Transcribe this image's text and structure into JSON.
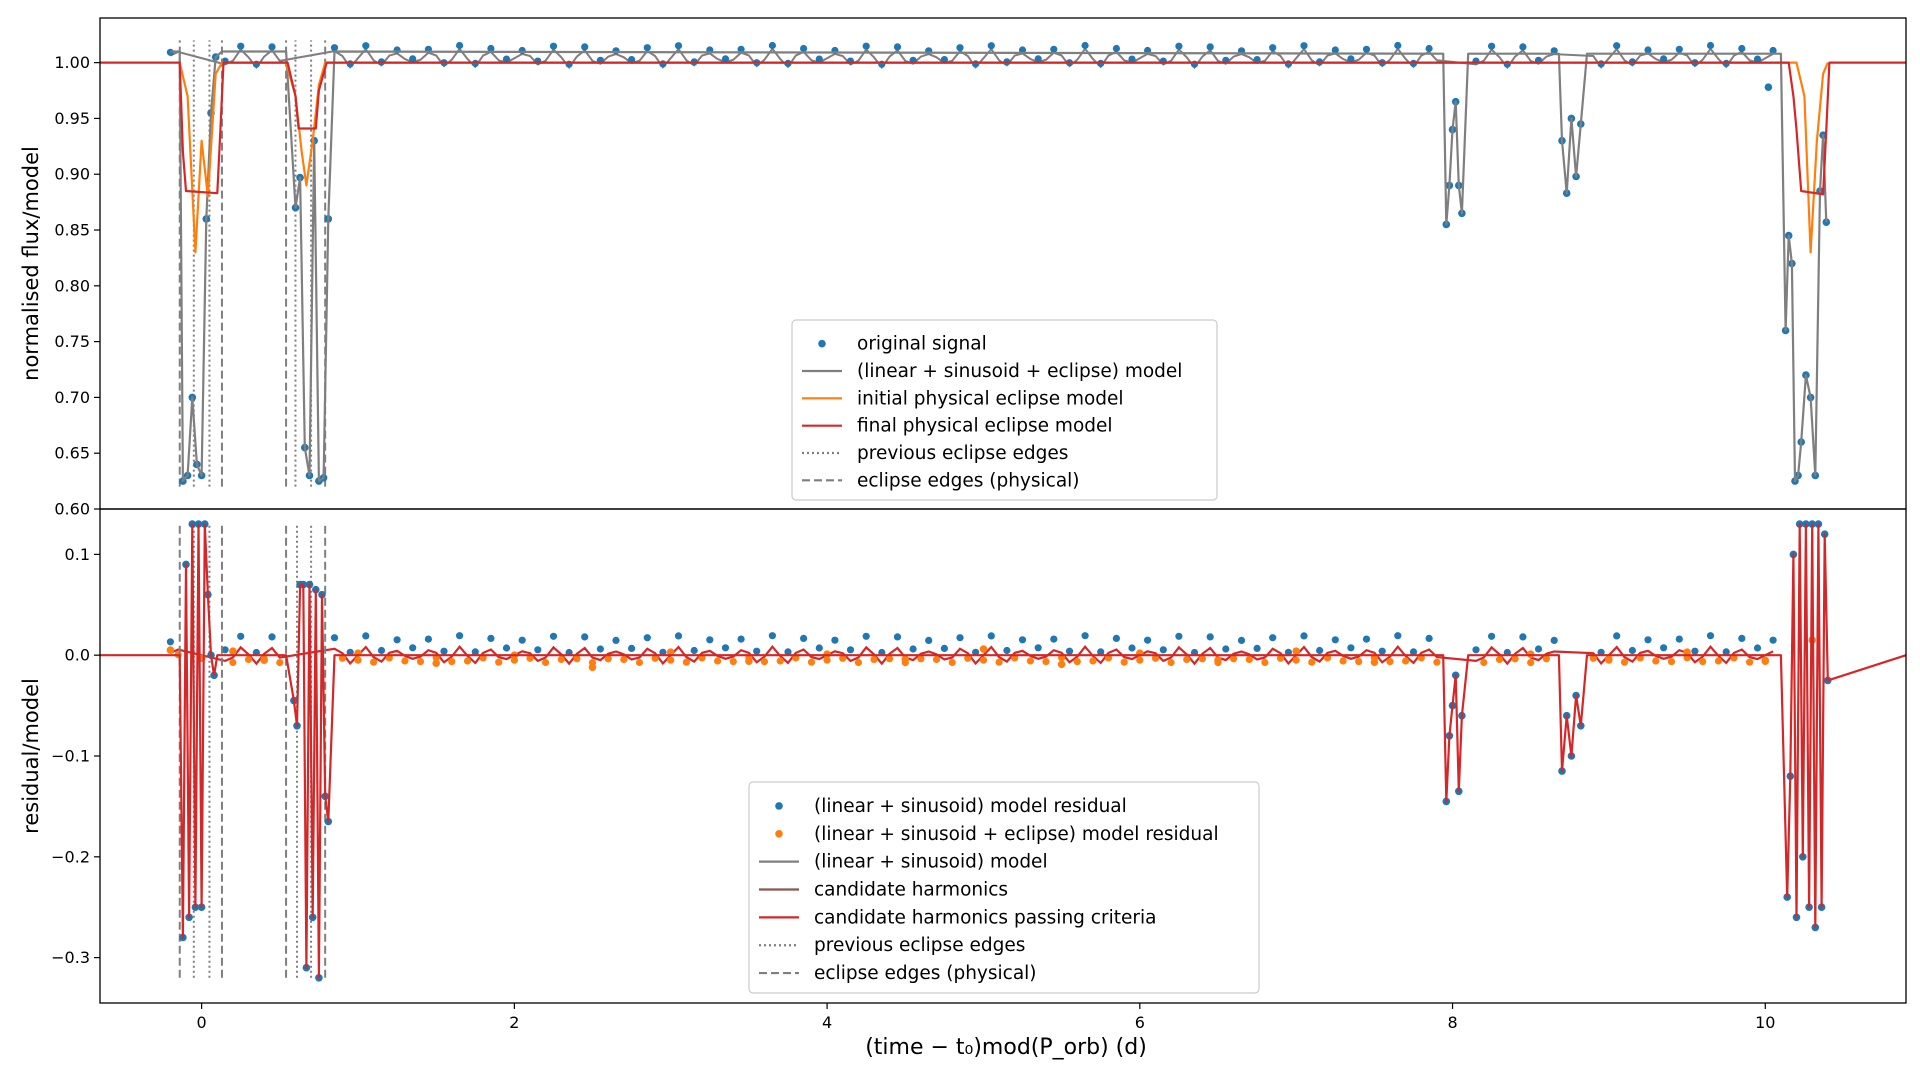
{
  "chart_data": {
    "type": "line",
    "xlabel": "(time − t₀)mod(P_orb) (d)",
    "xlim": [
      -0.65,
      10.9
    ],
    "x_ticks": [
      0,
      2,
      4,
      6,
      8,
      10
    ],
    "x_tick_labels": [
      "0",
      "2",
      "4",
      "6",
      "8",
      "10"
    ],
    "panels": [
      {
        "id": "top",
        "ylabel": "normalised flux/model",
        "ylim": [
          0.6,
          1.04
        ],
        "y_ticks": [
          0.6,
          0.65,
          0.7,
          0.75,
          0.8,
          0.85,
          0.9,
          0.95,
          1.0
        ],
        "y_tick_labels": [
          "0.60",
          "0.65",
          "0.70",
          "0.75",
          "0.80",
          "0.85",
          "0.90",
          "0.95",
          "1.00"
        ],
        "edges_dotted": [
          -0.05,
          0.05,
          0.6,
          0.7
        ],
        "edges_dashed": [
          -0.14,
          0.13,
          0.54,
          0.79
        ],
        "edge_range": [
          0.62,
          1.02
        ],
        "legend": {
          "placement": "lower center",
          "entries": [
            {
              "label": "original signal",
              "marker": "dot",
              "color": "#1f77b4"
            },
            {
              "label": "(linear + sinusoid + eclipse) model",
              "marker": "line",
              "color": "#7f7f7f"
            },
            {
              "label": "initial physical eclipse model",
              "marker": "line",
              "color": "#ff7f0e"
            },
            {
              "label": "final physical eclipse model",
              "marker": "line",
              "color": "#d62728"
            },
            {
              "label": "previous eclipse edges",
              "marker": "dotted",
              "color": "#7f7f7f"
            },
            {
              "label": "eclipse edges (physical)",
              "marker": "dashed",
              "color": "#7f7f7f"
            }
          ]
        },
        "series": [
          {
            "role": "original signal",
            "style": "scatter",
            "color": "#1f77b4",
            "x": [
              -0.12,
              -0.09,
              -0.06,
              -0.03,
              0.0,
              0.03,
              0.06,
              0.09,
              0.6,
              0.63,
              0.66,
              0.69,
              0.72,
              0.75,
              0.78,
              0.81,
              7.96,
              7.98,
              8.0,
              8.02,
              8.04,
              8.06,
              8.7,
              8.73,
              8.76,
              8.79,
              8.82,
              10.02,
              10.13,
              10.15,
              10.17,
              10.19,
              10.21,
              10.23,
              10.26,
              10.29,
              10.32,
              10.35,
              10.37,
              10.39
            ],
            "y": [
              0.625,
              0.63,
              0.7,
              0.64,
              0.63,
              0.86,
              0.955,
              1.005,
              0.87,
              0.897,
              0.655,
              0.63,
              0.93,
              0.625,
              0.628,
              0.86,
              0.855,
              0.89,
              0.94,
              0.965,
              0.89,
              0.865,
              0.93,
              0.883,
              0.95,
              0.898,
              0.945,
              0.978,
              0.76,
              0.845,
              0.82,
              0.625,
              0.63,
              0.66,
              0.72,
              0.7,
              0.63,
              0.885,
              0.935,
              0.857
            ]
          },
          {
            "role": "(linear + sinusoid + eclipse) model",
            "style": "line",
            "color": "#7f7f7f",
            "x": [
              -0.2,
              -0.14,
              -0.12,
              -0.09,
              -0.06,
              -0.03,
              0.0,
              0.03,
              0.06,
              0.09,
              0.13,
              0.54,
              0.6,
              0.63,
              0.66,
              0.69,
              0.72,
              0.75,
              0.78,
              0.81,
              0.85,
              7.94,
              7.96,
              7.98,
              8.0,
              8.02,
              8.04,
              8.06,
              8.1,
              8.68,
              8.7,
              8.73,
              8.76,
              8.79,
              8.82,
              8.86,
              10.1,
              10.13,
              10.15,
              10.17,
              10.19,
              10.21,
              10.23,
              10.26,
              10.29,
              10.32,
              10.35,
              10.37,
              10.39
            ],
            "y": [
              1.01,
              1.01,
              0.625,
              0.63,
              0.7,
              0.64,
              0.63,
              0.86,
              0.955,
              1.005,
              1.01,
              1.01,
              0.87,
              0.897,
              0.655,
              0.63,
              0.93,
              0.625,
              0.628,
              0.86,
              1.01,
              1.008,
              0.855,
              0.89,
              0.94,
              0.965,
              0.89,
              0.865,
              1.008,
              1.008,
              0.93,
              0.883,
              0.95,
              0.898,
              0.945,
              1.008,
              1.008,
              0.76,
              0.845,
              0.82,
              0.625,
              0.63,
              0.66,
              0.72,
              0.7,
              0.63,
              0.885,
              0.935,
              0.857
            ]
          },
          {
            "role": "initial physical eclipse model",
            "style": "line",
            "color": "#ff7f0e",
            "x": [
              -0.14,
              -0.09,
              -0.04,
              0.0,
              0.04,
              0.09,
              0.13,
              0.54,
              0.6,
              0.64,
              0.67,
              0.71,
              0.75,
              0.79,
              10.2,
              10.25,
              10.29,
              10.33,
              10.37,
              10.4
            ],
            "y": [
              1.0,
              0.97,
              0.83,
              0.93,
              0.88,
              0.99,
              1.0,
              1.0,
              0.97,
              0.92,
              0.89,
              0.93,
              0.98,
              1.0,
              1.0,
              0.97,
              0.83,
              0.93,
              0.99,
              1.0
            ]
          },
          {
            "role": "final physical eclipse model",
            "style": "line",
            "color": "#d62728",
            "x": [
              -0.65,
              -0.14,
              -0.12,
              -0.1,
              0.1,
              0.12,
              0.14,
              0.55,
              0.6,
              0.62,
              0.73,
              0.75,
              0.8,
              10.15,
              10.18,
              10.2,
              10.23,
              10.37,
              10.39,
              10.41,
              10.9
            ],
            "y": [
              1.0,
              1.0,
              0.92,
              0.885,
              0.883,
              0.94,
              1.0,
              1.0,
              0.97,
              0.941,
              0.941,
              0.975,
              1.0,
              1.0,
              0.97,
              0.94,
              0.885,
              0.882,
              0.94,
              1.0,
              1.0
            ]
          }
        ]
      },
      {
        "id": "bottom",
        "ylabel": "residual/model",
        "ylim": [
          -0.345,
          0.145
        ],
        "y_ticks": [
          -0.3,
          -0.2,
          -0.1,
          0.0,
          0.1
        ],
        "y_tick_labels": [
          "−0.3",
          "−0.2",
          "−0.1",
          "0.0",
          "0.1"
        ],
        "edges_dotted": [
          -0.05,
          0.05,
          0.61,
          0.7
        ],
        "edges_dashed": [
          -0.14,
          0.13,
          0.54,
          0.79
        ],
        "edge_range": [
          -0.32,
          0.13
        ],
        "legend": {
          "placement": "lower center",
          "entries": [
            {
              "label": "(linear + sinusoid) model residual",
              "marker": "dot",
              "color": "#1f77b4"
            },
            {
              "label": "(linear + sinusoid + eclipse) model residual",
              "marker": "dot",
              "color": "#ff7f0e"
            },
            {
              "label": "(linear + sinusoid) model",
              "marker": "line",
              "color": "#7f7f7f"
            },
            {
              "label": "candidate harmonics",
              "marker": "line",
              "color": "#8c564b"
            },
            {
              "label": "candidate harmonics passing criteria",
              "marker": "line",
              "color": "#d62728"
            },
            {
              "label": "previous eclipse edges",
              "marker": "dotted",
              "color": "#7f7f7f"
            },
            {
              "label": "eclipse edges (physical)",
              "marker": "dashed",
              "color": "#7f7f7f"
            }
          ]
        },
        "series": [
          {
            "role": "(linear + sinusoid) model residual",
            "style": "scatter",
            "color": "#1f77b4",
            "x": [
              -0.12,
              -0.1,
              -0.08,
              -0.06,
              -0.04,
              -0.02,
              0.0,
              0.02,
              0.04,
              0.06,
              0.08,
              0.59,
              0.61,
              0.63,
              0.65,
              0.67,
              0.69,
              0.71,
              0.73,
              0.75,
              0.77,
              0.79,
              0.81,
              7.96,
              7.98,
              8.0,
              8.02,
              8.04,
              8.06,
              8.7,
              8.73,
              8.76,
              8.79,
              8.82,
              10.14,
              10.16,
              10.18,
              10.2,
              10.22,
              10.24,
              10.26,
              10.28,
              10.3,
              10.32,
              10.34,
              10.36,
              10.38,
              10.4
            ],
            "y": [
              -0.28,
              0.09,
              -0.26,
              0.13,
              -0.25,
              0.13,
              -0.25,
              0.13,
              0.06,
              0.0,
              -0.02,
              -0.045,
              -0.07,
              0.07,
              0.07,
              -0.31,
              0.07,
              -0.26,
              0.065,
              -0.32,
              0.06,
              -0.14,
              -0.165,
              -0.145,
              -0.08,
              -0.05,
              -0.02,
              -0.135,
              -0.06,
              -0.115,
              -0.06,
              -0.1,
              -0.04,
              -0.07,
              -0.24,
              -0.12,
              0.1,
              -0.26,
              0.13,
              -0.2,
              0.13,
              -0.25,
              0.13,
              -0.27,
              0.13,
              -0.25,
              0.12,
              -0.025
            ]
          },
          {
            "role": "(linear + sinusoid + eclipse) model residual",
            "style": "scatter",
            "color": "#ff7f0e",
            "x": [
              -0.2,
              0.0,
              0.2,
              0.4,
              1.0,
              1.5,
              2.0,
              2.5,
              3.0,
              3.5,
              4.0,
              4.5,
              5.0,
              5.5,
              6.0,
              6.5,
              7.0,
              7.5,
              8.5,
              9.0,
              9.5,
              10.0,
              10.3
            ],
            "y": [
              0.005,
              -0.003,
              0.004,
              -0.005,
              0.002,
              -0.008,
              0.0,
              -0.012,
              0.003,
              -0.006,
              0.001,
              -0.004,
              0.006,
              -0.009,
              0.002,
              -0.005,
              0.004,
              -0.007,
              0.001,
              -0.004,
              0.003,
              -0.006,
              0.015
            ]
          },
          {
            "role": "candidate harmonics passing criteria",
            "style": "line",
            "color": "#d62728",
            "x": [
              -0.65,
              -0.14,
              -0.12,
              -0.1,
              -0.08,
              -0.06,
              -0.04,
              -0.02,
              0.0,
              0.02,
              0.04,
              0.06,
              0.08,
              0.1,
              0.13,
              0.54,
              0.59,
              0.61,
              0.63,
              0.65,
              0.67,
              0.69,
              0.71,
              0.73,
              0.75,
              0.77,
              0.79,
              0.81,
              0.85,
              7.94,
              7.96,
              7.98,
              8.0,
              8.02,
              8.04,
              8.06,
              8.1,
              8.68,
              8.7,
              8.73,
              8.76,
              8.79,
              8.82,
              8.86,
              10.1,
              10.14,
              10.16,
              10.18,
              10.2,
              10.22,
              10.24,
              10.26,
              10.28,
              10.3,
              10.32,
              10.34,
              10.36,
              10.38,
              10.4,
              10.9
            ],
            "y": [
              0.0,
              0.0,
              -0.28,
              0.09,
              -0.26,
              0.13,
              -0.25,
              0.13,
              -0.25,
              0.13,
              0.06,
              0.0,
              -0.02,
              0.0,
              0.0,
              0.0,
              -0.045,
              -0.07,
              0.07,
              0.07,
              -0.31,
              0.07,
              -0.26,
              0.065,
              -0.32,
              0.06,
              -0.14,
              -0.165,
              0.0,
              0.0,
              -0.145,
              -0.08,
              -0.05,
              -0.02,
              -0.135,
              -0.06,
              0.0,
              0.0,
              -0.115,
              -0.06,
              -0.1,
              -0.04,
              -0.07,
              0.0,
              0.0,
              -0.24,
              -0.12,
              0.1,
              -0.26,
              0.13,
              -0.2,
              0.13,
              -0.25,
              0.13,
              -0.27,
              0.13,
              -0.25,
              0.12,
              -0.025,
              0.0
            ]
          }
        ]
      }
    ],
    "baseline_cycle": {
      "period": 0.2,
      "top_amplitude": 0.006,
      "bottom_amplitude": 0.006
    }
  }
}
